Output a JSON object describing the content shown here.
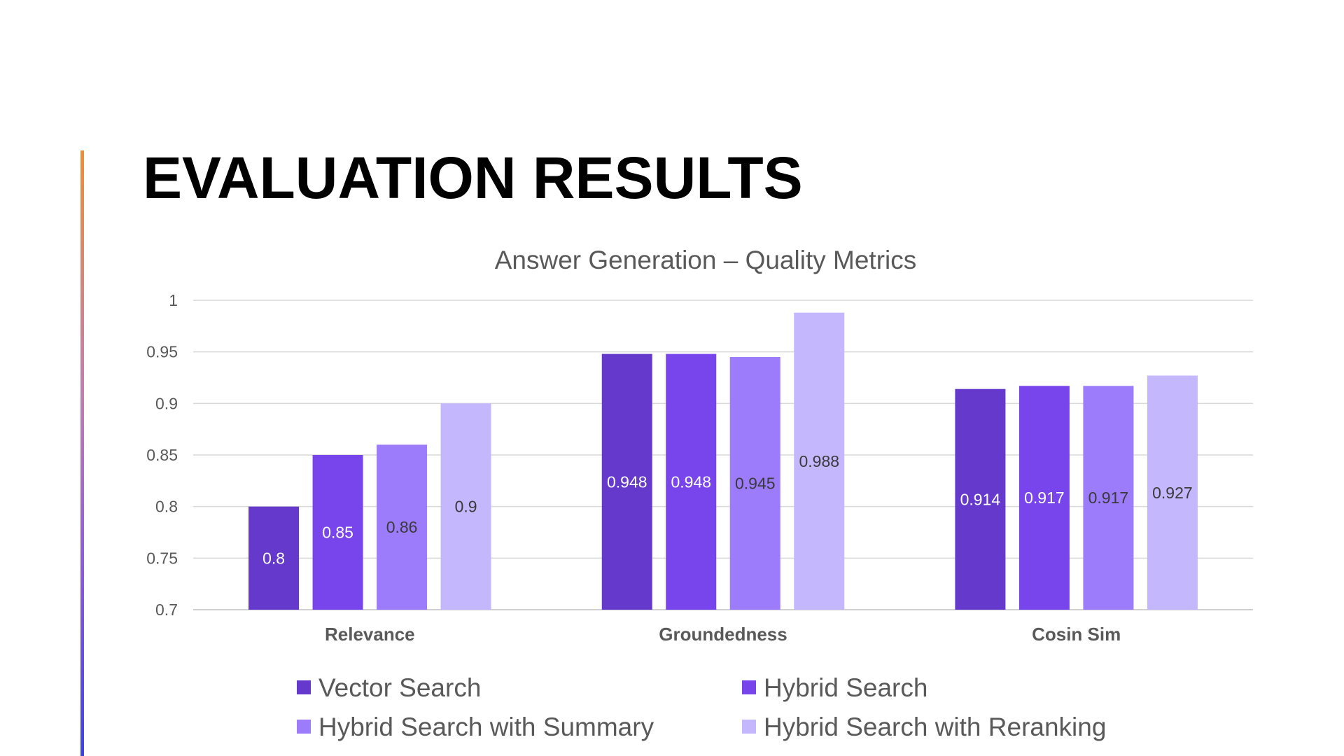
{
  "slide": {
    "title": "EVALUATION RESULTS"
  },
  "chart_data": {
    "type": "bar",
    "title": "Answer Generation – Quality Metrics",
    "xlabel": "",
    "ylabel": "",
    "categories": [
      "Relevance",
      "Groundedness",
      "Cosin Sim"
    ],
    "ylim": [
      0.7,
      1
    ],
    "yticks": [
      0.7,
      0.75,
      0.8,
      0.85,
      0.9,
      0.95,
      1
    ],
    "ytick_labels": [
      "0.7",
      "0.75",
      "0.8",
      "0.85",
      "0.9",
      "0.95",
      "1"
    ],
    "grid": true,
    "legend_position": "bottom",
    "series": [
      {
        "name": "Vector Search",
        "color": "#6439cc",
        "label_color": "#ffffff",
        "values": [
          0.8,
          0.948,
          0.914
        ],
        "labels": [
          "0.8",
          "0.948",
          "0.914"
        ]
      },
      {
        "name": "Hybrid Search",
        "color": "#7845ec",
        "label_color": "#ffffff",
        "values": [
          0.85,
          0.948,
          0.917
        ],
        "labels": [
          "0.85",
          "0.948",
          "0.917"
        ]
      },
      {
        "name": "Hybrid Search with Summary",
        "color": "#9c7cfa",
        "label_color": "#3a3a3a",
        "values": [
          0.86,
          0.945,
          0.917
        ],
        "labels": [
          "0.86",
          "0.945",
          "0.917"
        ]
      },
      {
        "name": "Hybrid Search with Reranking",
        "color": "#c4b7fd",
        "label_color": "#3a3a3a",
        "values": [
          0.9,
          0.988,
          0.927
        ],
        "labels": [
          "0.9",
          "0.988",
          "0.927"
        ]
      }
    ]
  }
}
